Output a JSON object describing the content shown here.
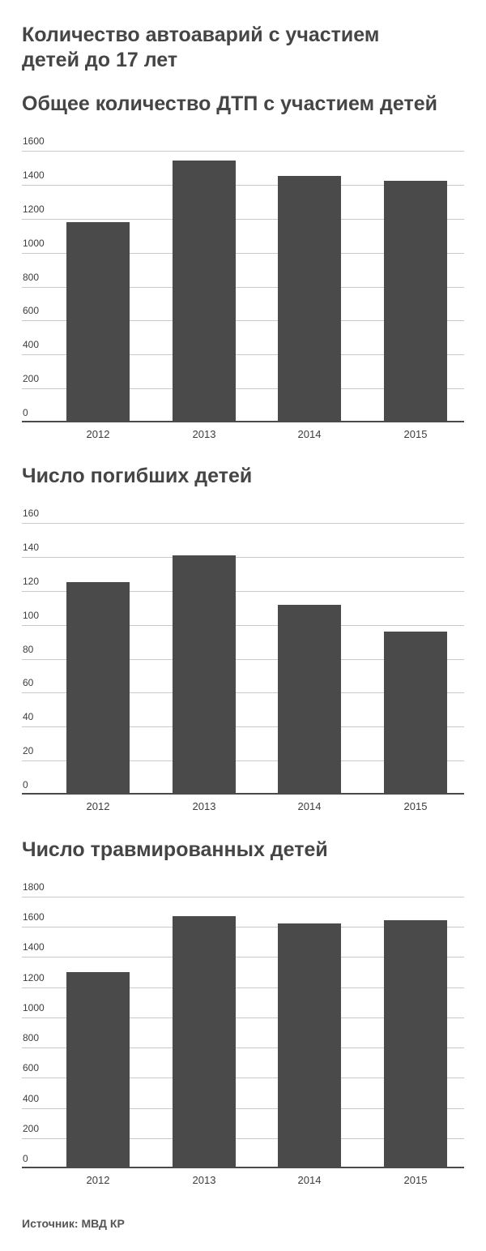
{
  "page": {
    "title_line1": "Количество автоаварий с участием",
    "title_line2": "детей до 17 лет",
    "source": "Источник: МВД КР"
  },
  "colors": {
    "bar": "#4a4a4a",
    "gridline": "#c9c9c9",
    "baseline": "#4a4a4a",
    "title_text": "#454545",
    "tick_text": "#3d3d3d",
    "source_text": "#555555",
    "background": "#ffffff"
  },
  "chart_data": [
    {
      "type": "bar",
      "title": "Общее количество ДТП с участием детей",
      "categories": [
        "2012",
        "2013",
        "2014",
        "2015"
      ],
      "values": [
        1180,
        1541,
        1454,
        1421
      ],
      "xlabel": "",
      "ylabel": "",
      "ylim": [
        0,
        1600
      ],
      "ytick_step": 200,
      "grid": true,
      "legend": "none"
    },
    {
      "type": "bar",
      "title": "Число погибших детей",
      "categories": [
        "2012",
        "2013",
        "2014",
        "2015"
      ],
      "values": [
        125,
        141,
        112,
        96
      ],
      "xlabel": "",
      "ylabel": "",
      "ylim": [
        0,
        160
      ],
      "ytick_step": 20,
      "grid": true,
      "legend": "none"
    },
    {
      "type": "bar",
      "title": "Число травмированных детей",
      "categories": [
        "2012",
        "2013",
        "2014",
        "2015"
      ],
      "values": [
        1300,
        1670,
        1620,
        1645
      ],
      "xlabel": "",
      "ylabel": "",
      "ylim": [
        0,
        1800
      ],
      "ytick_step": 200,
      "grid": true,
      "legend": "none"
    }
  ]
}
